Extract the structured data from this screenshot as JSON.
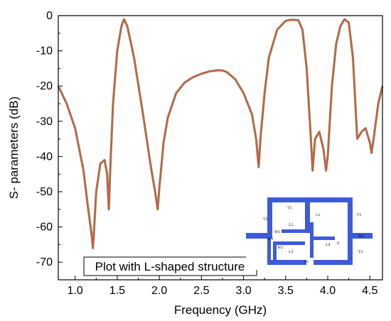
{
  "chart_data": {
    "type": "line",
    "title": "",
    "xlabel": "Frequency (GHz)",
    "ylabel": "S- parameters (dB)",
    "xlim": [
      0.8,
      4.65
    ],
    "ylim": [
      -75,
      0
    ],
    "xticks": [
      "1.0",
      "1.5",
      "2.0",
      "2.5",
      "3.0",
      "3.5",
      "4.0",
      "4.5"
    ],
    "yticks": [
      "0",
      "-10",
      "-20",
      "-30",
      "-40",
      "-50",
      "-60",
      "-70"
    ],
    "grid": false,
    "series": [
      {
        "color": "#d9534f",
        "x": [
          0.8,
          0.9,
          1.0,
          1.1,
          1.15,
          1.2,
          1.21,
          1.22,
          1.25,
          1.3,
          1.35,
          1.38,
          1.4,
          1.42,
          1.45,
          1.5,
          1.55,
          1.58,
          1.62,
          1.7,
          1.8,
          1.9,
          1.95,
          1.98,
          2.0,
          2.05,
          2.1,
          2.2,
          2.3,
          2.4,
          2.5,
          2.6,
          2.7,
          2.75,
          2.8,
          2.9,
          3.0,
          3.1,
          3.15,
          3.18,
          3.2,
          3.25,
          3.3,
          3.4,
          3.5,
          3.55,
          3.6,
          3.65,
          3.7,
          3.75,
          3.8,
          3.82,
          3.85,
          3.9,
          3.95,
          3.98,
          4.0,
          4.05,
          4.1,
          4.15,
          4.2,
          4.25,
          4.3,
          4.35,
          4.4,
          4.45,
          4.5,
          4.52,
          4.55,
          4.6,
          4.65
        ],
        "y": [
          -20,
          -25,
          -32,
          -44,
          -54,
          -63,
          -66,
          -63,
          -50,
          -42,
          -41,
          -45,
          -55,
          -42,
          -25,
          -10,
          -3,
          -1,
          -3,
          -12,
          -27,
          -43,
          -50,
          -55,
          -49,
          -36,
          -29,
          -22,
          -19,
          -17.5,
          -16.5,
          -15.8,
          -15.5,
          -15.6,
          -16,
          -18,
          -22,
          -28,
          -35,
          -43,
          -35,
          -22,
          -12,
          -4,
          -1.5,
          -1.2,
          -1.2,
          -1.3,
          -4,
          -15,
          -35,
          -44,
          -35,
          -33,
          -38,
          -44,
          -40,
          -20,
          -8,
          -3,
          -1,
          -2,
          -12,
          -35,
          -33,
          -32,
          -36,
          -39,
          -34,
          -25,
          -20
        ]
      }
    ],
    "annotation": "Plot with L-shaped structure"
  },
  "inset": {
    "labels": [
      "T1",
      "L1",
      "L2",
      "W1",
      "W2",
      "L3",
      "L4",
      "T2",
      "S1",
      "W1",
      "S",
      "T1",
      "T2",
      "W2"
    ],
    "colors": {
      "strip": "#3d5bd9",
      "curve_top": "#d9534f",
      "curve_bottom": "#6aa84f"
    }
  }
}
